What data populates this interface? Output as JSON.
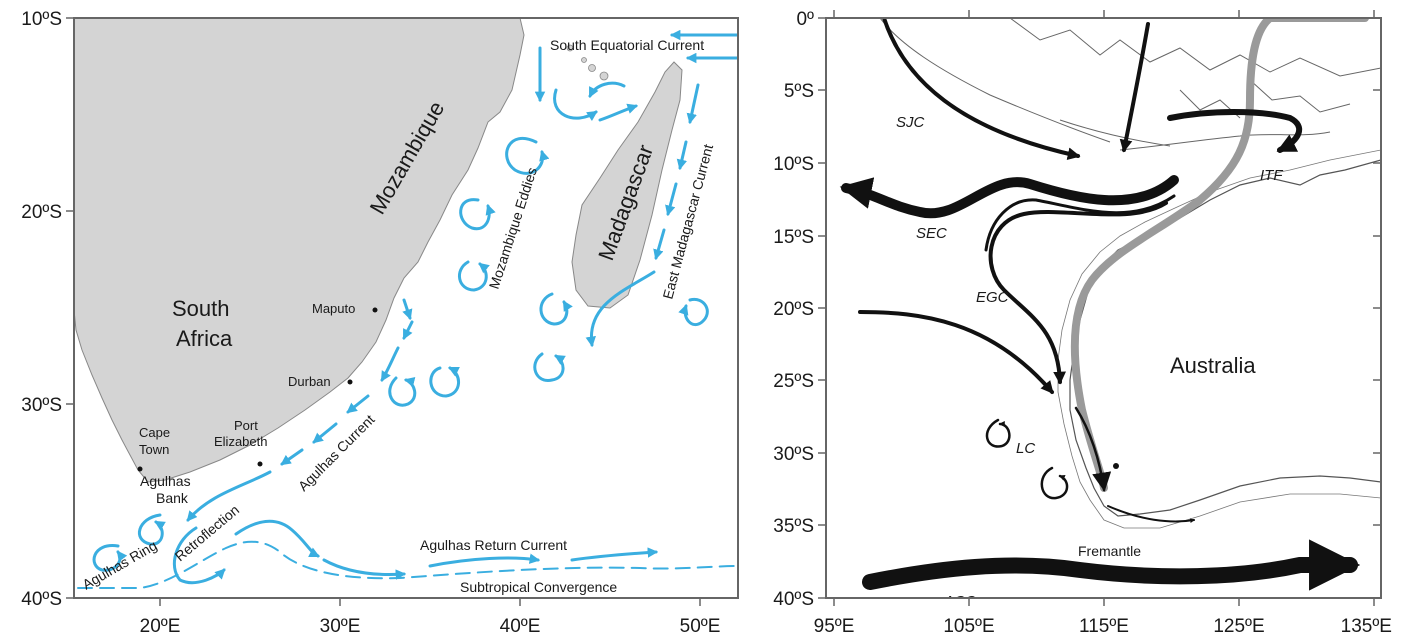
{
  "left_map": {
    "lat_labels": [
      "10ºS",
      "20ºS",
      "30ºS",
      "40ºS"
    ],
    "lon_labels": [
      "20ºE",
      "30ºE",
      "40ºE",
      "50ºE"
    ],
    "land_labels": {
      "mozambique": "Mozambique",
      "madagascar": "Madagascar",
      "south": "South",
      "africa": "Africa"
    },
    "places": {
      "maputo": "Maputo",
      "durban": "Durban",
      "cape": "Cape",
      "town": "Town",
      "port": "Port",
      "elizabeth": "Elizabeth"
    },
    "currents": {
      "south_equatorial": "South Equatorial Current",
      "mozambique_eddies": "Mozambique Eddies",
      "east_madagascar": "East Madagascar Current",
      "agulhas_current": "Agulhas Current",
      "agulhas": "Agulhas",
      "bank": "Bank",
      "agulhas_ring": "Agulhas Ring",
      "retroflection": "Retroflection",
      "agulhas_return": "Agulhas Return Current",
      "subtropical": "Subtropical Convergence"
    },
    "colors": {
      "land": "#d4d4d4",
      "current": "#3aaee0",
      "frame": "#666666"
    }
  },
  "right_map": {
    "lat_labels": [
      "0º",
      "5ºS",
      "10ºS",
      "15ºS",
      "20ºS",
      "25ºS",
      "30ºS",
      "35ºS",
      "40ºS"
    ],
    "lon_labels": [
      "95ºE",
      "105ºE",
      "115ºE",
      "125ºE",
      "135ºE"
    ],
    "land_label": "Australia",
    "place": "Fremantle",
    "currents": {
      "sjc": "SJC",
      "sec": "SEC",
      "egc": "EGC",
      "itf": "ITF",
      "lc": "LC",
      "acc": "ACC"
    },
    "colors": {
      "current": "#111111",
      "leeuwin": "#9a9a9a",
      "coast": "#555555"
    }
  }
}
